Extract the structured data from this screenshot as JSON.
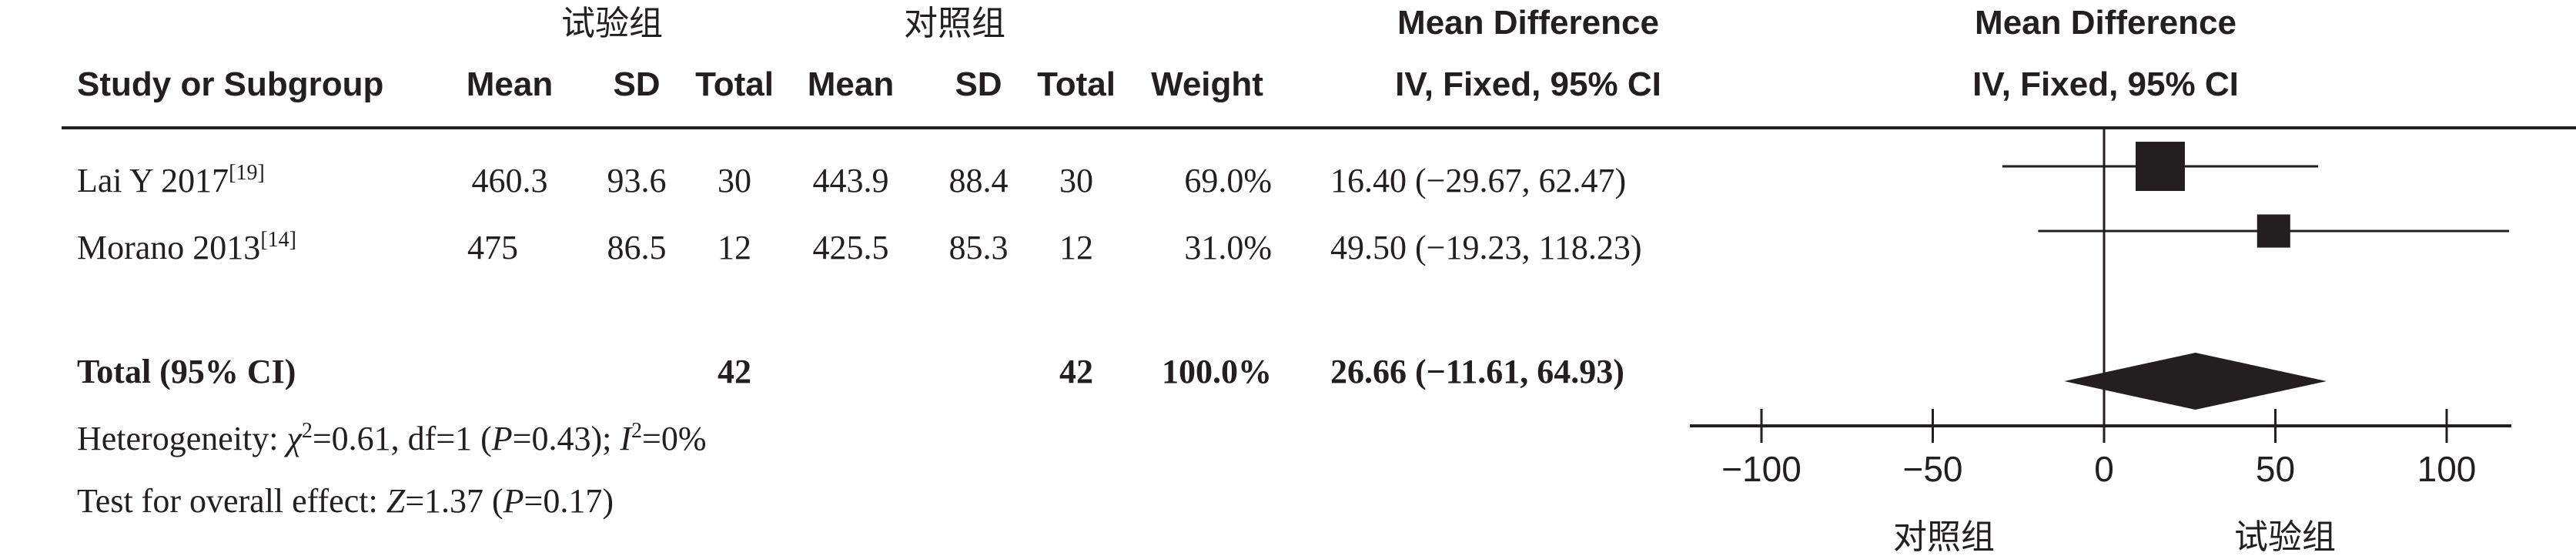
{
  "header": {
    "group_treatment": "试验组",
    "group_control": "对照组",
    "col_study": "Study or Subgroup",
    "col_mean": "Mean",
    "col_sd": "SD",
    "col_total": "Total",
    "col_weight": "Weight",
    "col_md_line1": "Mean Difference",
    "col_md_line2": "IV, Fixed, 95% CI",
    "plot_line1": "Mean Difference",
    "plot_line2": "IV, Fixed, 95% CI"
  },
  "studies": [
    {
      "name": "Lai Y 2017",
      "ref": "[19]",
      "t_mean": "460.3",
      "t_sd": "93.6",
      "t_total": "30",
      "c_mean": "443.9",
      "c_sd": "88.4",
      "c_total": "30",
      "weight": "69.0%",
      "ci_text": "16.40 (−29.67, 62.47)"
    },
    {
      "name": "Morano 2013",
      "ref": "[14]",
      "t_mean": "475",
      "t_sd": "86.5",
      "t_total": "12",
      "c_mean": "425.5",
      "c_sd": "85.3",
      "c_total": "12",
      "weight": "31.0%",
      "ci_text": "49.50 (−19.23, 118.23)"
    }
  ],
  "total": {
    "label": "Total (95% CI)",
    "t_total": "42",
    "c_total": "42",
    "weight": "100.0%",
    "ci_text": "26.66 (−11.61, 64.93)"
  },
  "heterogeneity": {
    "prefix": "Heterogeneity: ",
    "chi": "χ",
    "chi_sup": "2",
    "chi_val": "=0.61, df=1 (",
    "p": "P",
    "p_val": "=0.43); ",
    "i": "I",
    "i_sup": "2",
    "i_val": "=0%"
  },
  "overall": {
    "prefix": "Test for overall effect: ",
    "z": "Z",
    "z_val": "=1.37 (",
    "p": "P",
    "p_val": "=0.17)"
  },
  "axis_left_label": "对照组",
  "axis_right_label": "试验组",
  "chart_data": {
    "type": "forest",
    "xlim": [
      -100,
      100
    ],
    "ticks": [
      -100,
      -50,
      0,
      50,
      100
    ],
    "tick_labels": [
      "−100",
      "−50",
      "0",
      "50",
      "100"
    ],
    "studies": [
      {
        "name": "Lai Y 2017",
        "md": 16.4,
        "lo": -29.67,
        "hi": 62.47,
        "weight": 69.0
      },
      {
        "name": "Morano 2013",
        "md": 49.5,
        "lo": -19.23,
        "hi": 118.23,
        "weight": 31.0
      }
    ],
    "pooled": {
      "md": 26.66,
      "lo": -11.61,
      "hi": 64.93
    }
  }
}
